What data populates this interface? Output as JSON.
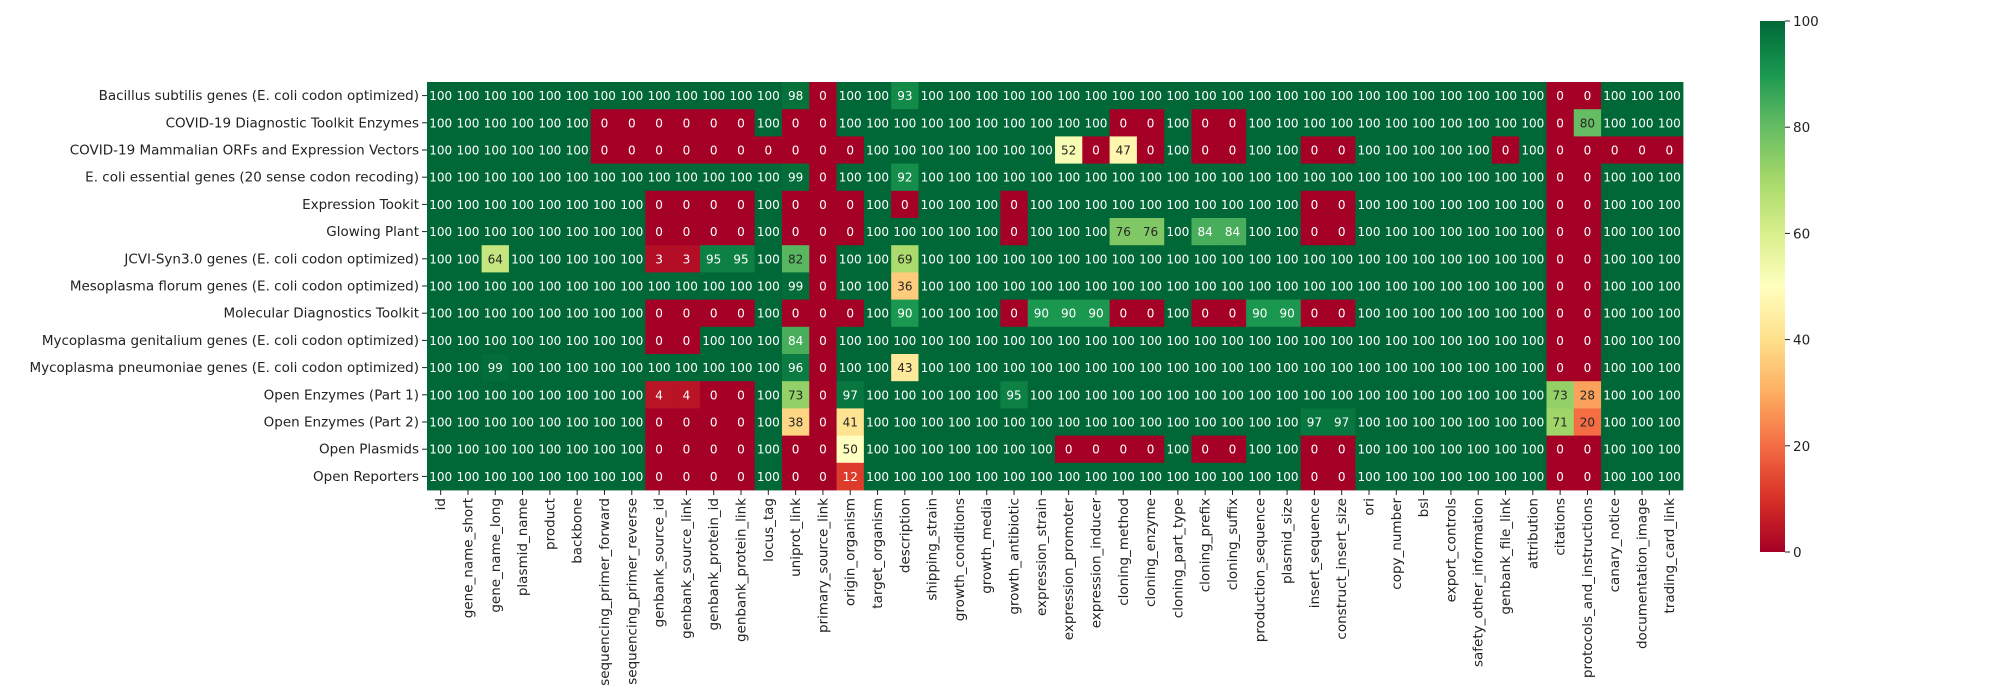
{
  "chart_data": {
    "type": "heatmap",
    "title": "",
    "xlabel": "",
    "ylabel": "",
    "rows": [
      "Bacillus subtilis genes (E. coli codon optimized)",
      "COVID-19 Diagnostic Toolkit Enzymes",
      "COVID-19 Mammalian ORFs and Expression Vectors",
      "E. coli essential genes (20 sense codon recoding)",
      "Expression Tookit",
      "Glowing Plant",
      "JCVI-Syn3.0 genes (E. coli codon optimized)",
      "Mesoplasma florum genes (E. coli codon optimized)",
      "Molecular Diagnostics Toolkit",
      "Mycoplasma genitalium genes (E. coli codon optimized)",
      "Mycoplasma pneumoniae genes (E. coli codon optimized)",
      "Open Enzymes (Part 1)",
      "Open Enzymes (Part 2)",
      "Open Plasmids",
      "Open Reporters"
    ],
    "columns": [
      "id",
      "gene_name_short",
      "gene_name_long",
      "plasmid_name",
      "product",
      "backbone",
      "sequencing_primer_forward",
      "sequencing_primer_reverse",
      "genbank_source_id",
      "genbank_source_link",
      "genbank_protein_id",
      "genbank_protein_link",
      "locus_tag",
      "uniprot_link",
      "primary_source_link",
      "origin_organism",
      "target_organism",
      "description",
      "shipping_strain",
      "growth_conditions",
      "growth_media",
      "growth_antibiotic",
      "expression_strain",
      "expression_promoter",
      "expression_inducer",
      "cloning_method",
      "cloning_enzyme",
      "cloning_part_type",
      "cloning_prefix",
      "cloning_suffix",
      "production_sequence",
      "plasmid_size",
      "insert_sequence",
      "construct_insert_size",
      "ori",
      "copy_number",
      "bsl",
      "export_controls",
      "safety_other_information",
      "genbank_file_link",
      "attribution",
      "citations",
      "protocols_and_instructions",
      "canary_notice",
      "documentation_image",
      "trading_card_link"
    ],
    "values": [
      [
        100,
        100,
        100,
        100,
        100,
        100,
        100,
        100,
        100,
        100,
        100,
        100,
        100,
        98,
        0,
        100,
        100,
        93,
        100,
        100,
        100,
        100,
        100,
        100,
        100,
        100,
        100,
        100,
        100,
        100,
        100,
        100,
        100,
        100,
        100,
        100,
        100,
        100,
        100,
        100,
        100,
        0,
        0,
        100,
        100,
        100
      ],
      [
        100,
        100,
        100,
        100,
        100,
        100,
        0,
        0,
        0,
        0,
        0,
        0,
        100,
        0,
        0,
        100,
        100,
        100,
        100,
        100,
        100,
        100,
        100,
        100,
        100,
        0,
        0,
        100,
        0,
        0,
        100,
        100,
        100,
        100,
        100,
        100,
        100,
        100,
        100,
        100,
        100,
        0,
        80,
        100,
        100,
        100
      ],
      [
        100,
        100,
        100,
        100,
        100,
        100,
        0,
        0,
        0,
        0,
        0,
        0,
        0,
        0,
        0,
        0,
        100,
        100,
        100,
        100,
        100,
        100,
        100,
        52,
        0,
        47,
        0,
        100,
        0,
        0,
        100,
        100,
        0,
        0,
        100,
        100,
        100,
        100,
        100,
        0,
        100,
        0,
        0,
        0,
        0,
        0
      ],
      [
        100,
        100,
        100,
        100,
        100,
        100,
        100,
        100,
        100,
        100,
        100,
        100,
        100,
        99,
        0,
        100,
        100,
        92,
        100,
        100,
        100,
        100,
        100,
        100,
        100,
        100,
        100,
        100,
        100,
        100,
        100,
        100,
        100,
        100,
        100,
        100,
        100,
        100,
        100,
        100,
        100,
        0,
        0,
        100,
        100,
        100
      ],
      [
        100,
        100,
        100,
        100,
        100,
        100,
        100,
        100,
        0,
        0,
        0,
        0,
        100,
        0,
        0,
        0,
        100,
        0,
        100,
        100,
        100,
        0,
        100,
        100,
        100,
        100,
        100,
        100,
        100,
        100,
        100,
        100,
        0,
        0,
        100,
        100,
        100,
        100,
        100,
        100,
        100,
        0,
        0,
        100,
        100,
        100
      ],
      [
        100,
        100,
        100,
        100,
        100,
        100,
        100,
        100,
        0,
        0,
        0,
        0,
        100,
        0,
        0,
        0,
        100,
        100,
        100,
        100,
        100,
        0,
        100,
        100,
        100,
        76,
        76,
        100,
        84,
        84,
        100,
        100,
        0,
        0,
        100,
        100,
        100,
        100,
        100,
        100,
        100,
        0,
        0,
        100,
        100,
        100
      ],
      [
        100,
        100,
        64,
        100,
        100,
        100,
        100,
        100,
        3,
        3,
        95,
        95,
        100,
        82,
        0,
        100,
        100,
        69,
        100,
        100,
        100,
        100,
        100,
        100,
        100,
        100,
        100,
        100,
        100,
        100,
        100,
        100,
        100,
        100,
        100,
        100,
        100,
        100,
        100,
        100,
        100,
        0,
        0,
        100,
        100,
        100
      ],
      [
        100,
        100,
        100,
        100,
        100,
        100,
        100,
        100,
        100,
        100,
        100,
        100,
        100,
        99,
        0,
        100,
        100,
        36,
        100,
        100,
        100,
        100,
        100,
        100,
        100,
        100,
        100,
        100,
        100,
        100,
        100,
        100,
        100,
        100,
        100,
        100,
        100,
        100,
        100,
        100,
        100,
        0,
        0,
        100,
        100,
        100
      ],
      [
        100,
        100,
        100,
        100,
        100,
        100,
        100,
        100,
        0,
        0,
        0,
        0,
        100,
        0,
        0,
        0,
        100,
        90,
        100,
        100,
        100,
        0,
        90,
        90,
        90,
        0,
        0,
        100,
        0,
        0,
        90,
        90,
        0,
        0,
        100,
        100,
        100,
        100,
        100,
        100,
        100,
        0,
        0,
        100,
        100,
        100
      ],
      [
        100,
        100,
        100,
        100,
        100,
        100,
        100,
        100,
        0,
        0,
        100,
        100,
        100,
        84,
        0,
        100,
        100,
        100,
        100,
        100,
        100,
        100,
        100,
        100,
        100,
        100,
        100,
        100,
        100,
        100,
        100,
        100,
        100,
        100,
        100,
        100,
        100,
        100,
        100,
        100,
        100,
        0,
        0,
        100,
        100,
        100
      ],
      [
        100,
        100,
        99,
        100,
        100,
        100,
        100,
        100,
        100,
        100,
        100,
        100,
        100,
        96,
        0,
        100,
        100,
        43,
        100,
        100,
        100,
        100,
        100,
        100,
        100,
        100,
        100,
        100,
        100,
        100,
        100,
        100,
        100,
        100,
        100,
        100,
        100,
        100,
        100,
        100,
        100,
        0,
        0,
        100,
        100,
        100
      ],
      [
        100,
        100,
        100,
        100,
        100,
        100,
        100,
        100,
        4,
        4,
        0,
        0,
        100,
        73,
        0,
        97,
        100,
        100,
        100,
        100,
        100,
        95,
        100,
        100,
        100,
        100,
        100,
        100,
        100,
        100,
        100,
        100,
        100,
        100,
        100,
        100,
        100,
        100,
        100,
        100,
        100,
        73,
        28,
        100,
        100,
        100
      ],
      [
        100,
        100,
        100,
        100,
        100,
        100,
        100,
        100,
        0,
        0,
        0,
        0,
        100,
        38,
        0,
        41,
        100,
        100,
        100,
        100,
        100,
        100,
        100,
        100,
        100,
        100,
        100,
        100,
        100,
        100,
        100,
        100,
        97,
        97,
        100,
        100,
        100,
        100,
        100,
        100,
        100,
        71,
        20,
        100,
        100,
        100
      ],
      [
        100,
        100,
        100,
        100,
        100,
        100,
        100,
        100,
        0,
        0,
        0,
        0,
        100,
        0,
        0,
        50,
        100,
        100,
        100,
        100,
        100,
        100,
        100,
        0,
        0,
        0,
        0,
        100,
        0,
        0,
        100,
        100,
        0,
        0,
        100,
        100,
        100,
        100,
        100,
        100,
        100,
        0,
        0,
        100,
        100,
        100
      ],
      [
        100,
        100,
        100,
        100,
        100,
        100,
        100,
        100,
        0,
        0,
        0,
        0,
        100,
        0,
        0,
        12,
        100,
        100,
        100,
        100,
        100,
        100,
        100,
        100,
        100,
        100,
        100,
        100,
        100,
        100,
        100,
        100,
        0,
        0,
        100,
        100,
        100,
        100,
        100,
        100,
        100,
        0,
        0,
        100,
        100,
        100
      ]
    ],
    "colormap": "RdYlGn",
    "vmin": 0,
    "vmax": 100,
    "colorbar_ticks": [
      0,
      20,
      40,
      60,
      80,
      100
    ],
    "grid": false,
    "legend": "colorbar-right"
  }
}
